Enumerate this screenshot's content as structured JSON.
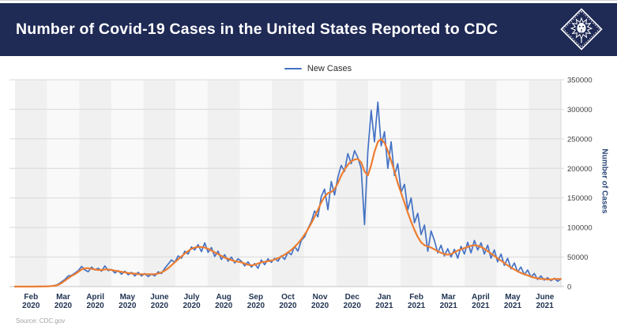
{
  "header": {
    "title": "Number of Covid-19 Cases in the United States Reported to CDC",
    "logo": "lion-diamond-emblem"
  },
  "legend": {
    "items": [
      {
        "label": "New Cases",
        "color": "#4472c4"
      }
    ]
  },
  "source": "Source: CDC.gov",
  "style": {
    "navy": "#1f2a55",
    "band_dark": "#f0f0f0",
    "band_light": "#f9f9f9",
    "grid": "#d9d9d9",
    "axis_line": "#c6c6c6",
    "x_label_color": "#1f3250",
    "y_tick_color": "#3f3f3f",
    "y_title_color": "#2e4a7a",
    "source_color": "#a3a3a3",
    "legend_text": "#2b2b2b"
  },
  "chart_data": {
    "type": "line",
    "title": "Number of Covid-19 Cases in the United States Reported to CDC",
    "xlabel": "",
    "ylabel": "Number of Cases",
    "ylim": [
      0,
      350000
    ],
    "y_ticks": [
      0,
      50000,
      100000,
      150000,
      200000,
      250000,
      300000,
      350000
    ],
    "grid": "horizontal",
    "plot_bands": "alternating-month-shading",
    "legend_position": "top-center",
    "values_unit": "daily reported cases, in thousands",
    "x_tick_labels": [
      {
        "month": "Feb",
        "year": "2020"
      },
      {
        "month": "Mar",
        "year": "2020"
      },
      {
        "month": "April",
        "year": "2020"
      },
      {
        "month": "May",
        "year": "2020"
      },
      {
        "month": "June",
        "year": "2020"
      },
      {
        "month": "July",
        "year": "2020"
      },
      {
        "month": "Aug",
        "year": "2020"
      },
      {
        "month": "Sep",
        "year": "2020"
      },
      {
        "month": "Oct",
        "year": "2020"
      },
      {
        "month": "Nov",
        "year": "2020"
      },
      {
        "month": "Dec",
        "year": "2020"
      },
      {
        "month": "Jan",
        "year": "2021"
      },
      {
        "month": "Feb",
        "year": "2021"
      },
      {
        "month": "Mar",
        "year": "2021"
      },
      {
        "month": "April",
        "year": "2021"
      },
      {
        "month": "May",
        "year": "2021"
      },
      {
        "month": "June",
        "year": "2021"
      }
    ],
    "series": [
      {
        "id": "new-cases",
        "name": "New Cases",
        "color": "#4472c4",
        "width": 1.7,
        "values_k": [
          0,
          0,
          0,
          0,
          0,
          0,
          0.1,
          0.1,
          0.3,
          0.3,
          0.6,
          1,
          2,
          4,
          8,
          12,
          18,
          19,
          23,
          27,
          34,
          28,
          25,
          33,
          28,
          31,
          26,
          35,
          27,
          29,
          23,
          27,
          21,
          26,
          20,
          24,
          18,
          24,
          18,
          22,
          17,
          21,
          18,
          25,
          22,
          31,
          38,
          45,
          41,
          52,
          48,
          60,
          55,
          67,
          62,
          71,
          59,
          74,
          58,
          66,
          51,
          60,
          46,
          54,
          43,
          50,
          40,
          47,
          43,
          35,
          42,
          33,
          39,
          31,
          45,
          37,
          47,
          41,
          48,
          43,
          52,
          46,
          58,
          54,
          68,
          60,
          78,
          84,
          98,
          110,
          128,
          118,
          152,
          165,
          130,
          178,
          155,
          185,
          205,
          195,
          225,
          208,
          230,
          218,
          200,
          105,
          228,
          298,
          245,
          312,
          238,
          262,
          200,
          245,
          188,
          208,
          160,
          173,
          130,
          150,
          108,
          124,
          88,
          104,
          60,
          94,
          78,
          57,
          70,
          52,
          64,
          50,
          63,
          48,
          68,
          55,
          75,
          57,
          78,
          62,
          74,
          55,
          70,
          48,
          62,
          42,
          55,
          36,
          48,
          30,
          40,
          25,
          33,
          20,
          28,
          16,
          22,
          12,
          18,
          11,
          15,
          10,
          14,
          9,
          13
        ]
      },
      {
        "id": "trend",
        "name": "Smoothed trend (unlabeled orange line)",
        "color": "#ed7d31",
        "width": 2.2,
        "values_k": [
          0,
          0,
          0,
          0,
          0,
          0,
          0,
          0.1,
          0.2,
          0.3,
          0.5,
          0.9,
          1.6,
          3,
          6,
          10,
          14,
          18,
          21,
          25,
          29,
          31,
          31,
          30,
          29,
          28,
          28,
          29,
          29,
          28,
          27,
          26,
          25,
          24,
          23,
          22,
          22,
          21,
          21,
          21,
          21,
          21,
          21,
          22,
          24,
          27,
          31,
          36,
          41,
          46,
          51,
          56,
          60,
          64,
          66,
          67,
          67,
          66,
          64,
          61,
          58,
          55,
          52,
          49,
          47,
          45,
          43,
          42,
          41,
          39,
          37,
          36,
          37,
          39,
          41,
          42,
          43,
          44,
          46,
          48,
          51,
          54,
          58,
          62,
          67,
          73,
          80,
          88,
          97,
          107,
          118,
          130,
          142,
          152,
          158,
          160,
          165,
          175,
          188,
          198,
          206,
          212,
          215,
          216,
          210,
          195,
          188,
          205,
          228,
          245,
          250,
          243,
          230,
          213,
          195,
          175,
          158,
          142,
          125,
          110,
          96,
          84,
          75,
          70,
          68,
          66,
          63,
          60,
          57,
          55,
          54,
          55,
          58,
          61,
          63,
          65,
          67,
          69,
          70,
          69,
          67,
          64,
          60,
          56,
          52,
          48,
          44,
          40,
          36,
          32,
          29,
          26,
          23,
          21,
          19,
          17,
          15,
          14,
          13,
          13,
          12,
          12,
          13,
          13,
          13
        ]
      }
    ]
  }
}
